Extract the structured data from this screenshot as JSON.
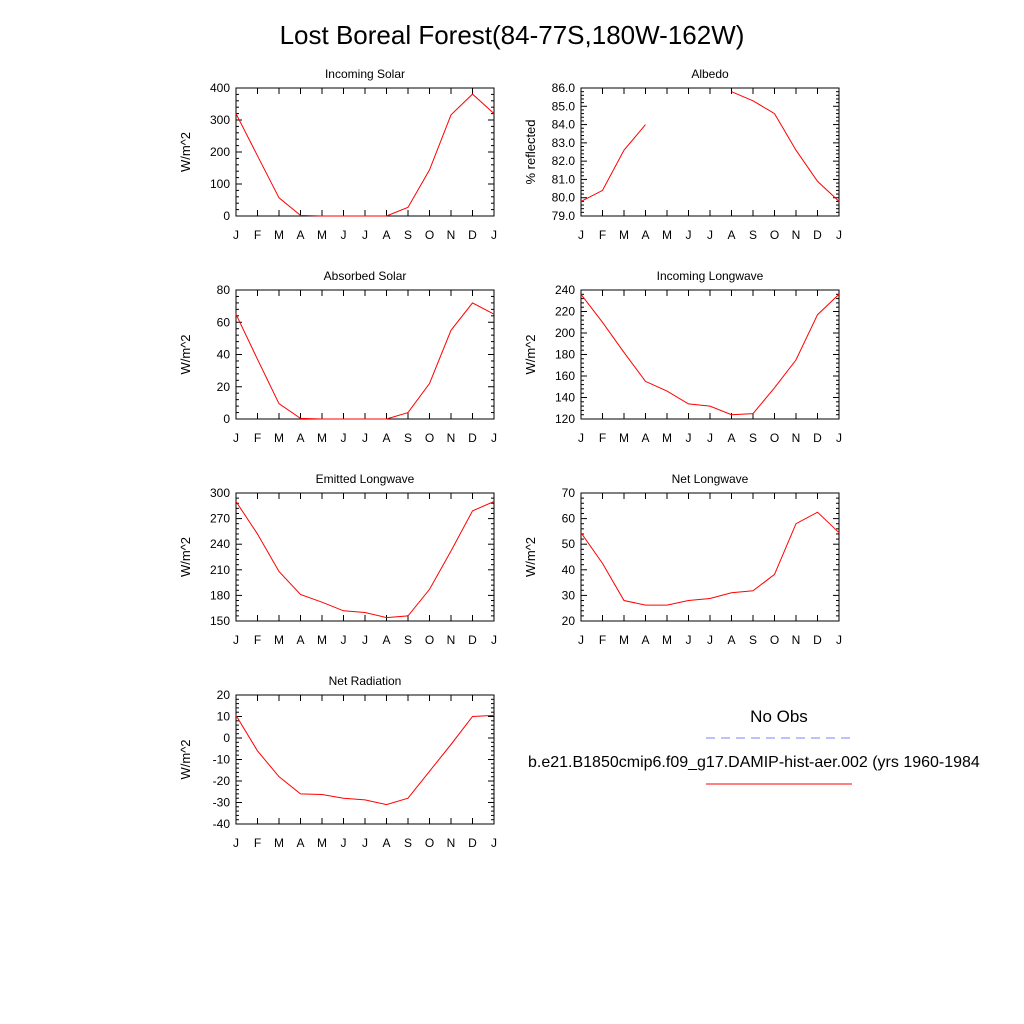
{
  "title": "Lost Boreal Forest(84-77S,180W-162W)",
  "colors": {
    "model": "#ff0000",
    "obs": "#8080ff",
    "axis": "#000000"
  },
  "legend": {
    "title": "No Obs",
    "series_label": "b.e21.B1850cmip6.f09_g17.DAMIP-hist-aer.002 (yrs 1960-1984"
  },
  "chart_data": [
    {
      "type": "line",
      "title": "Incoming Solar",
      "ylabel": "W/m^2",
      "x": [
        "J",
        "F",
        "M",
        "A",
        "M",
        "J",
        "J",
        "A",
        "S",
        "O",
        "N",
        "D",
        "J"
      ],
      "ylim": [
        0,
        400
      ],
      "yticks": [
        "0",
        "100",
        "200",
        "300",
        "400"
      ],
      "grid": false,
      "series": [
        {
          "values": [
            320,
            188,
            57,
            2,
            0,
            0,
            0,
            0,
            27,
            144,
            316,
            381,
            320
          ]
        }
      ]
    },
    {
      "type": "line",
      "title": "Albedo",
      "ylabel": "% reflected",
      "x": [
        "J",
        "F",
        "M",
        "A",
        "M",
        "J",
        "J",
        "A",
        "S",
        "O",
        "N",
        "D",
        "J"
      ],
      "ylim": [
        79.0,
        86.0
      ],
      "yticks": [
        "79.0",
        "80.0",
        "81.0",
        "82.0",
        "83.0",
        "84.0",
        "85.0",
        "86.0"
      ],
      "grid": false,
      "series": [
        {
          "values": [
            79.8,
            80.4,
            82.6,
            84.0,
            null,
            null,
            null,
            85.8,
            85.3,
            84.6,
            82.6,
            80.9,
            79.8
          ]
        }
      ]
    },
    {
      "type": "line",
      "title": "Absorbed Solar",
      "ylabel": "W/m^2",
      "x": [
        "J",
        "F",
        "M",
        "A",
        "M",
        "J",
        "J",
        "A",
        "S",
        "O",
        "N",
        "D",
        "J"
      ],
      "ylim": [
        0,
        80
      ],
      "yticks": [
        "0",
        "20",
        "40",
        "60",
        "80"
      ],
      "grid": false,
      "series": [
        {
          "values": [
            65,
            37,
            9.5,
            0.4,
            0,
            0,
            0,
            0,
            4,
            22,
            55,
            72,
            65
          ]
        }
      ]
    },
    {
      "type": "line",
      "title": "Incoming Longwave",
      "ylabel": "W/m^2",
      "x": [
        "J",
        "F",
        "M",
        "A",
        "M",
        "J",
        "J",
        "A",
        "S",
        "O",
        "N",
        "D",
        "J"
      ],
      "ylim": [
        120,
        240
      ],
      "yticks": [
        "120",
        "140",
        "160",
        "180",
        "200",
        "220",
        "240"
      ],
      "grid": false,
      "series": [
        {
          "values": [
            236,
            210,
            182,
            155,
            146,
            134,
            132,
            124,
            125,
            149,
            175,
            217,
            236
          ]
        }
      ]
    },
    {
      "type": "line",
      "title": "Emitted Longwave",
      "ylabel": "W/m^2",
      "x": [
        "J",
        "F",
        "M",
        "A",
        "M",
        "J",
        "J",
        "A",
        "S",
        "O",
        "N",
        "D",
        "J"
      ],
      "ylim": [
        150,
        300
      ],
      "yticks": [
        "150",
        "180",
        "210",
        "240",
        "270",
        "300"
      ],
      "grid": false,
      "series": [
        {
          "values": [
            290,
            252,
            208,
            181,
            172,
            162,
            160,
            154,
            156,
            187,
            232,
            279,
            290
          ]
        }
      ]
    },
    {
      "type": "line",
      "title": "Net Longwave",
      "ylabel": "W/m^2",
      "x": [
        "J",
        "F",
        "M",
        "A",
        "M",
        "J",
        "J",
        "A",
        "S",
        "O",
        "N",
        "D",
        "J"
      ],
      "ylim": [
        20,
        70
      ],
      "yticks": [
        "20",
        "30",
        "40",
        "50",
        "60",
        "70"
      ],
      "grid": false,
      "series": [
        {
          "values": [
            54.5,
            42.5,
            28,
            26.2,
            26.2,
            28,
            28.8,
            31,
            31.8,
            38.2,
            58,
            62.5,
            54.5
          ]
        }
      ]
    },
    {
      "type": "line",
      "title": "Net Radiation",
      "ylabel": "W/m^2",
      "x": [
        "J",
        "F",
        "M",
        "A",
        "M",
        "J",
        "J",
        "A",
        "S",
        "O",
        "N",
        "D",
        "J"
      ],
      "ylim": [
        -40,
        20
      ],
      "yticks": [
        "-40",
        "-30",
        "-20",
        "-10",
        "0",
        "10",
        "20"
      ],
      "grid": false,
      "series": [
        {
          "values": [
            10.5,
            -6,
            -18,
            -26,
            -26.3,
            -28,
            -28.8,
            -31,
            -28,
            -15.5,
            -3,
            10,
            10.5
          ]
        }
      ]
    }
  ]
}
